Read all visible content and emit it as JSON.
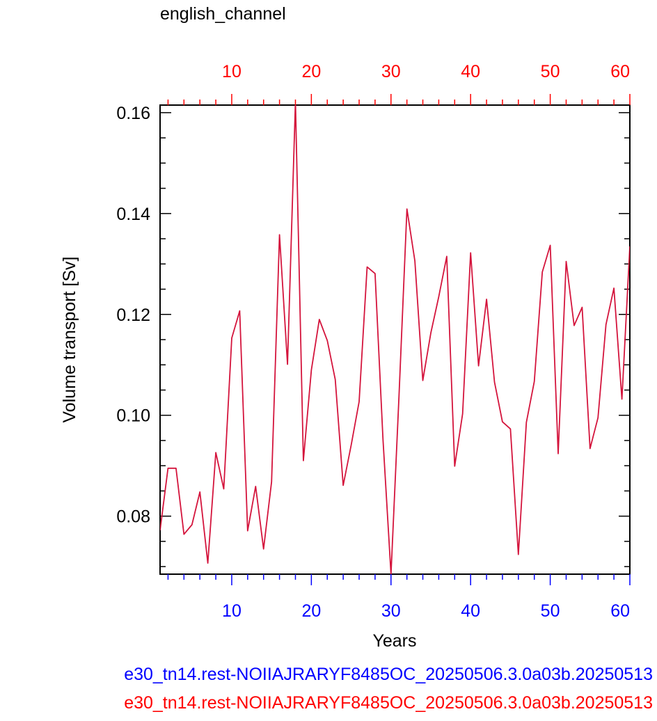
{
  "chart_data": {
    "type": "line",
    "title": "english_channel",
    "xlabel": "Years",
    "ylabel": "Volume transport [Sv]",
    "xlim": [
      1,
      60
    ],
    "ylim": [
      0.0685,
      0.1615
    ],
    "x_major_ticks": [
      10,
      20,
      30,
      40,
      50,
      60
    ],
    "x_minor_step": 2,
    "y_major_ticks": [
      0.08,
      0.1,
      0.12,
      0.14,
      0.16
    ],
    "y_tick_labels": [
      "0.08",
      "0.10",
      "0.12",
      "0.14",
      "0.16"
    ],
    "y_minor_step": 0.005,
    "grid": false,
    "bottom_axis_color": "#0000ff",
    "top_axis_color": "#ff0000",
    "series": [
      {
        "color": "#d4143c",
        "x": [
          1,
          2,
          3,
          4,
          5,
          6,
          7,
          8,
          9,
          10,
          11,
          12,
          13,
          14,
          15,
          16,
          17,
          18,
          19,
          20,
          21,
          22,
          23,
          24,
          25,
          26,
          27,
          28,
          29,
          30,
          31,
          32,
          33,
          34,
          35,
          36,
          37,
          38,
          39,
          40,
          41,
          42,
          43,
          44,
          45,
          46,
          47,
          48,
          49,
          50,
          51,
          52,
          53,
          54,
          55,
          56,
          57,
          58,
          59,
          60
        ],
        "values": [
          0.0772,
          0.0895,
          0.0895,
          0.0764,
          0.0783,
          0.0848,
          0.0707,
          0.0926,
          0.0854,
          0.1153,
          0.1207,
          0.0771,
          0.0859,
          0.0735,
          0.0868,
          0.1358,
          0.1101,
          0.1622,
          0.091,
          0.109,
          0.119,
          0.1148,
          0.1071,
          0.0861,
          0.0941,
          0.1027,
          0.1294,
          0.1281,
          0.0952,
          0.0685,
          0.1035,
          0.1409,
          0.1306,
          0.1069,
          0.1163,
          0.1235,
          0.1315,
          0.0899,
          0.1003,
          0.1322,
          0.1098,
          0.123,
          0.1066,
          0.0987,
          0.0973,
          0.0724,
          0.0986,
          0.1067,
          0.1284,
          0.1337,
          0.0924,
          0.1305,
          0.1178,
          0.1214,
          0.0934,
          0.0995,
          0.118,
          0.1252,
          0.1032,
          0.1335
        ]
      }
    ]
  },
  "captions": {
    "line1": "e30_tn14.rest-NOIIAJRARYF8485OC_20250506.3.0a03b.20250513",
    "line2": "e30_tn14.rest-NOIIAJRARYF8485OC_20250506.3.0a03b.20250513"
  }
}
